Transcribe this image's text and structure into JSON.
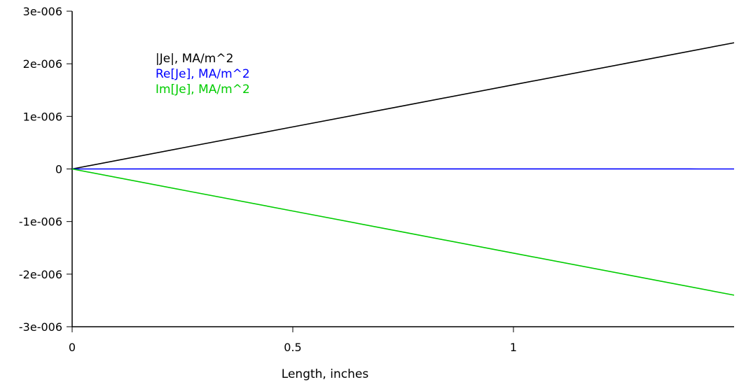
{
  "chart_data": {
    "type": "line",
    "xlabel": "Length, inches",
    "ylabel": "",
    "xlim": [
      0,
      1.5
    ],
    "ylim": [
      -3e-06,
      3e-06
    ],
    "x_ticks": [
      0,
      0.5,
      1
    ],
    "x_tick_labels": [
      "0",
      "0.5",
      "1"
    ],
    "y_ticks": [
      3e-06,
      2e-06,
      1e-06,
      0,
      -1e-06,
      -2e-06,
      -3e-06
    ],
    "y_tick_labels": [
      "3e-006",
      "2e-006",
      "1e-006",
      "0",
      "-1e-006",
      "-2e-006",
      "-3e-006"
    ],
    "grid": false,
    "legend_position": "top-left",
    "series": [
      {
        "name": "|Je|, MA/m^2",
        "color": "#000000",
        "x": [
          0,
          0.25,
          0.5,
          0.75,
          1.0,
          1.25,
          1.5
        ],
        "y": [
          0,
          4e-07,
          8e-07,
          1.2e-06,
          1.6e-06,
          2e-06,
          2.4e-06
        ]
      },
      {
        "name": "Re[Je], MA/m^2",
        "color": "#0000ff",
        "x": [
          0,
          0.5,
          1.0,
          1.4,
          1.42,
          1.5
        ],
        "y": [
          0,
          1e-09,
          1e-09,
          1e-09,
          0,
          0
        ]
      },
      {
        "name": "Im[Je], MA/m^2",
        "color": "#00cc00",
        "x": [
          0,
          0.25,
          0.5,
          0.75,
          1.0,
          1.25,
          1.5
        ],
        "y": [
          0,
          -4e-07,
          -8e-07,
          -1.2e-06,
          -1.6e-06,
          -2e-06,
          -2.4e-06
        ]
      }
    ]
  }
}
